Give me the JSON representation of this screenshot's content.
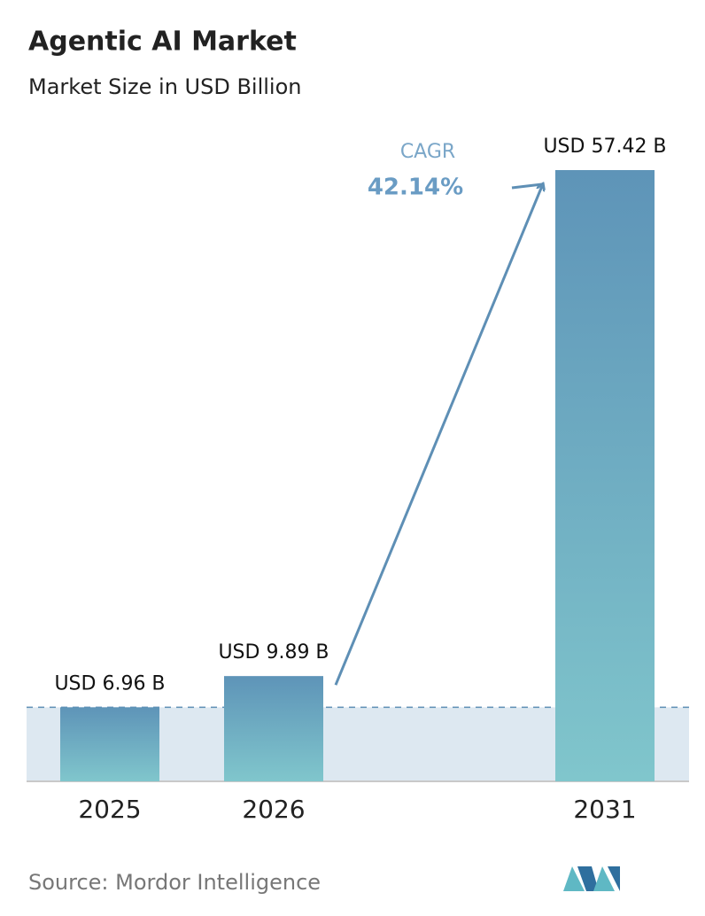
{
  "chart_data": {
    "type": "bar",
    "title": "Agentic AI Market",
    "subtitle": "Market Size in USD Billion",
    "categories": [
      "2025",
      "2026",
      "2031"
    ],
    "values": [
      6.96,
      9.89,
      57.42
    ],
    "value_labels": [
      "USD 6.96 B",
      "USD 9.89 B",
      "USD 57.42 B"
    ],
    "color": "#6aa6c0",
    "annotations": [
      "CAGR",
      "42.14%"
    ],
    "source": "Source: Mordor Intelligence"
  }
}
